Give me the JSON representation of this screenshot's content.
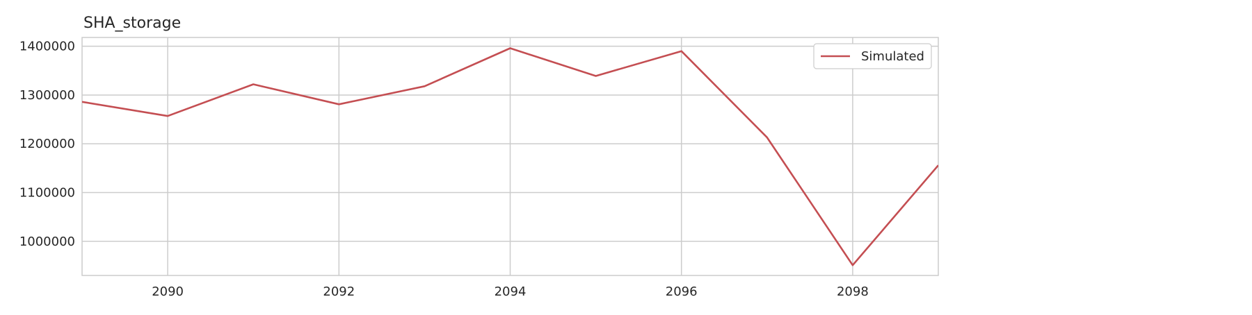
{
  "chart_data": {
    "type": "line",
    "title": "SHA_storage",
    "xlabel": "",
    "ylabel": "",
    "x": [
      2089,
      2090,
      2091,
      2092,
      2093,
      2094,
      2095,
      2096,
      2097,
      2098,
      2099
    ],
    "series": [
      {
        "name": "Simulated",
        "color": "#c44e52",
        "values": [
          1286000,
          1257000,
          1322000,
          1281000,
          1318000,
          1396000,
          1339000,
          1390000,
          1213000,
          951000,
          1156000
        ]
      }
    ],
    "xlim": [
      2089,
      2099
    ],
    "ylim": [
      930000,
      1418000
    ],
    "xticks": [
      2090,
      2092,
      2094,
      2096,
      2098
    ],
    "yticks": [
      1000000,
      1100000,
      1200000,
      1300000,
      1400000
    ],
    "grid": true,
    "legend_position": "top-right"
  }
}
